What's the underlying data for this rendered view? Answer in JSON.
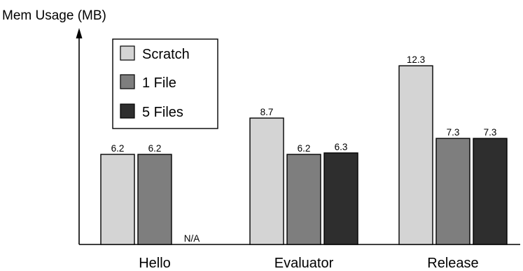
{
  "chart_data": {
    "type": "bar",
    "ylabel": "Mem Usage (MB)",
    "categories": [
      "Hello",
      "Evaluator",
      "Release"
    ],
    "series": [
      {
        "name": "Scratch",
        "values": [
          6.2,
          8.7,
          12.3
        ],
        "labels": [
          "6.2",
          "8.7",
          "12.3"
        ]
      },
      {
        "name": "1 File",
        "values": [
          6.2,
          6.2,
          7.3
        ],
        "labels": [
          "6.2",
          "6.2",
          "7.3"
        ]
      },
      {
        "name": "5 Files",
        "values": [
          null,
          6.3,
          7.3
        ],
        "labels": [
          "N/A",
          "6.3",
          "7.3"
        ]
      }
    ],
    "colors": [
      "#d4d4d4",
      "#7e7e7e",
      "#2e2e2e"
    ],
    "ylim": [
      0,
      13
    ],
    "grid": false,
    "legend_position": "top-left"
  }
}
